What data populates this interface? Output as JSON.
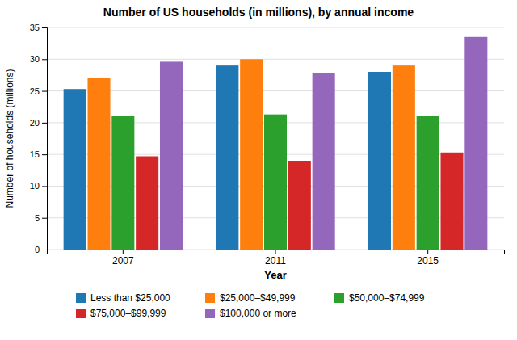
{
  "chart_data": {
    "type": "bar",
    "title": "Number of US households (in millions), by annual income",
    "xlabel": "Year",
    "ylabel": "Number of households (millions)",
    "categories": [
      "2007",
      "2011",
      "2015"
    ],
    "series": [
      {
        "name": "Less than $25,000",
        "values": [
          25.3,
          29.0,
          28.0
        ]
      },
      {
        "name": "$25,000–$49,999",
        "values": [
          27.0,
          30.0,
          29.0
        ]
      },
      {
        "name": "$50,000–$74,999",
        "values": [
          21.0,
          21.3,
          21.0
        ]
      },
      {
        "name": "$75,000–$99,999",
        "values": [
          14.7,
          14.0,
          15.3
        ]
      },
      {
        "name": "$100,000 or more",
        "values": [
          29.6,
          27.8,
          33.5
        ]
      }
    ],
    "ylim": [
      0,
      35
    ],
    "yticks": [
      0,
      5,
      10,
      15,
      20,
      25,
      30,
      35
    ],
    "grid": true,
    "legend": "bottom"
  }
}
